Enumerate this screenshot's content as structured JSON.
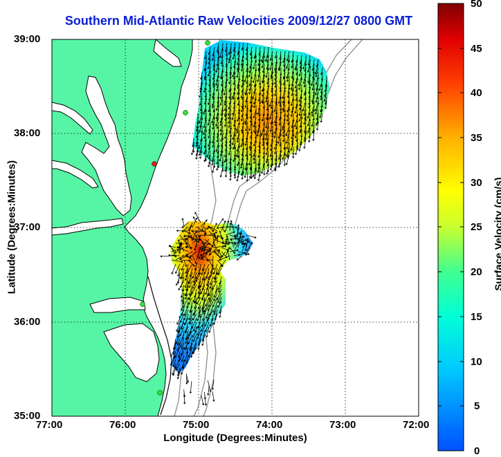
{
  "title": "Southern Mid-Atlantic Raw Velocities 2009/12/27 0800 GMT",
  "xlabel": "Longitude (Degrees:Minutes)",
  "ylabel": "Latitude (Degrees:Minutes)",
  "colorbar_label": "Surface Velocity (cm/s)",
  "x_ticks": [
    "77:00",
    "76:00",
    "75:00",
    "74:00",
    "73:00",
    "72:00"
  ],
  "y_ticks": [
    "39:00",
    "38:00",
    "37:00",
    "36:00",
    "35:00"
  ],
  "colorbar_ticks": [
    "50",
    "45",
    "40",
    "35",
    "30",
    "25",
    "20",
    "15",
    "10",
    "5",
    "0"
  ],
  "colors": {
    "land": "#55f5a5",
    "coastline": "#000000",
    "bathymetry": "#8c8c8c",
    "title": "#0a1ed6",
    "site_marker": "#2ee62e",
    "site_marker_alt": "#e02020"
  },
  "map_extent": {
    "lon": [
      -77,
      -72
    ],
    "lat": [
      35,
      39
    ]
  },
  "colorbar_range": [
    0,
    50
  ],
  "colormap": "jet",
  "grid": "dotted"
}
